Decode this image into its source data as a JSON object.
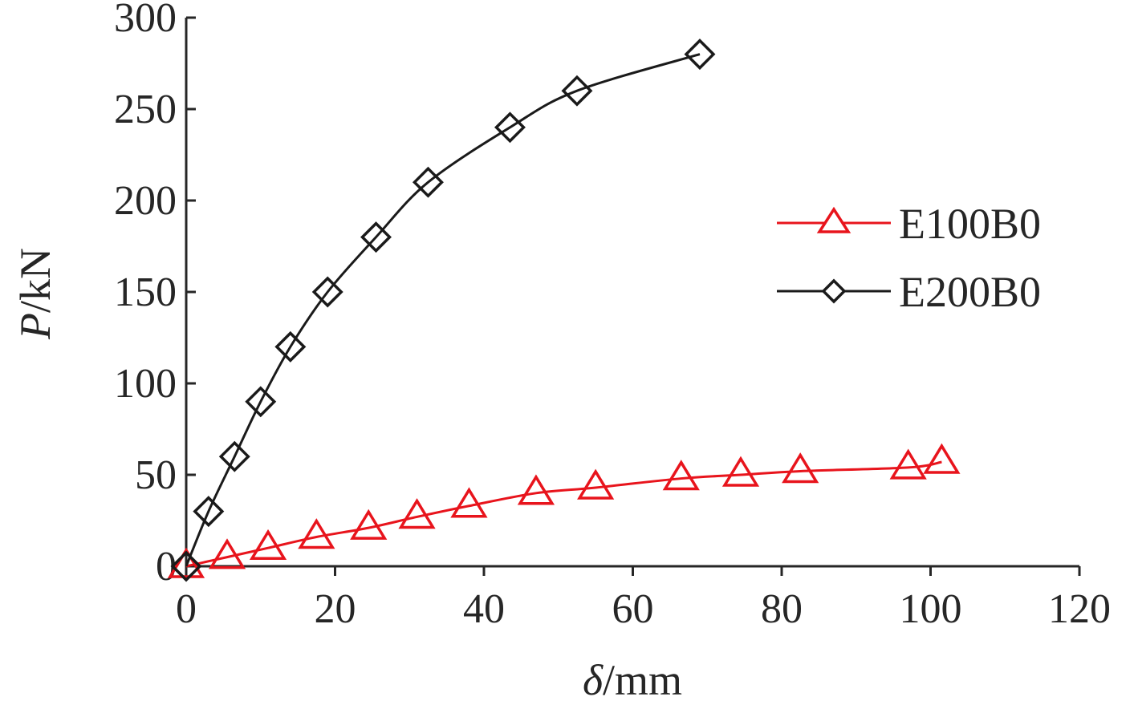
{
  "chart_data": {
    "type": "line",
    "title": "",
    "xlabel": {
      "symbol": "δ",
      "unit": "/mm"
    },
    "ylabel": {
      "symbol": "P",
      "unit": "/kN"
    },
    "xlim": [
      0,
      120
    ],
    "ylim": [
      0,
      300
    ],
    "xticks": [
      "0",
      "20",
      "40",
      "60",
      "80",
      "100",
      "120"
    ],
    "yticks": [
      "0",
      "50",
      "100",
      "150",
      "200",
      "250",
      "300"
    ],
    "grid": false,
    "legend_position": "right",
    "series": [
      {
        "name": "E100B0",
        "color": "#e8141c",
        "marker": "triangle",
        "x": [
          0,
          5.5,
          11,
          17.5,
          24.5,
          31,
          38,
          47,
          55,
          66.5,
          74.5,
          82.5,
          97,
          101.5
        ],
        "y": [
          0,
          5,
          10,
          16,
          21,
          27,
          33,
          40,
          43,
          48,
          50,
          52,
          54,
          57
        ]
      },
      {
        "name": "E200B0",
        "color": "#1a1a1a",
        "marker": "diamond",
        "x": [
          0,
          3,
          6.5,
          10,
          14,
          19,
          25.5,
          32.5,
          43.5,
          52.5,
          69
        ],
        "y": [
          0,
          30,
          60,
          90,
          120,
          150,
          180,
          210,
          240,
          260,
          280
        ]
      }
    ]
  }
}
